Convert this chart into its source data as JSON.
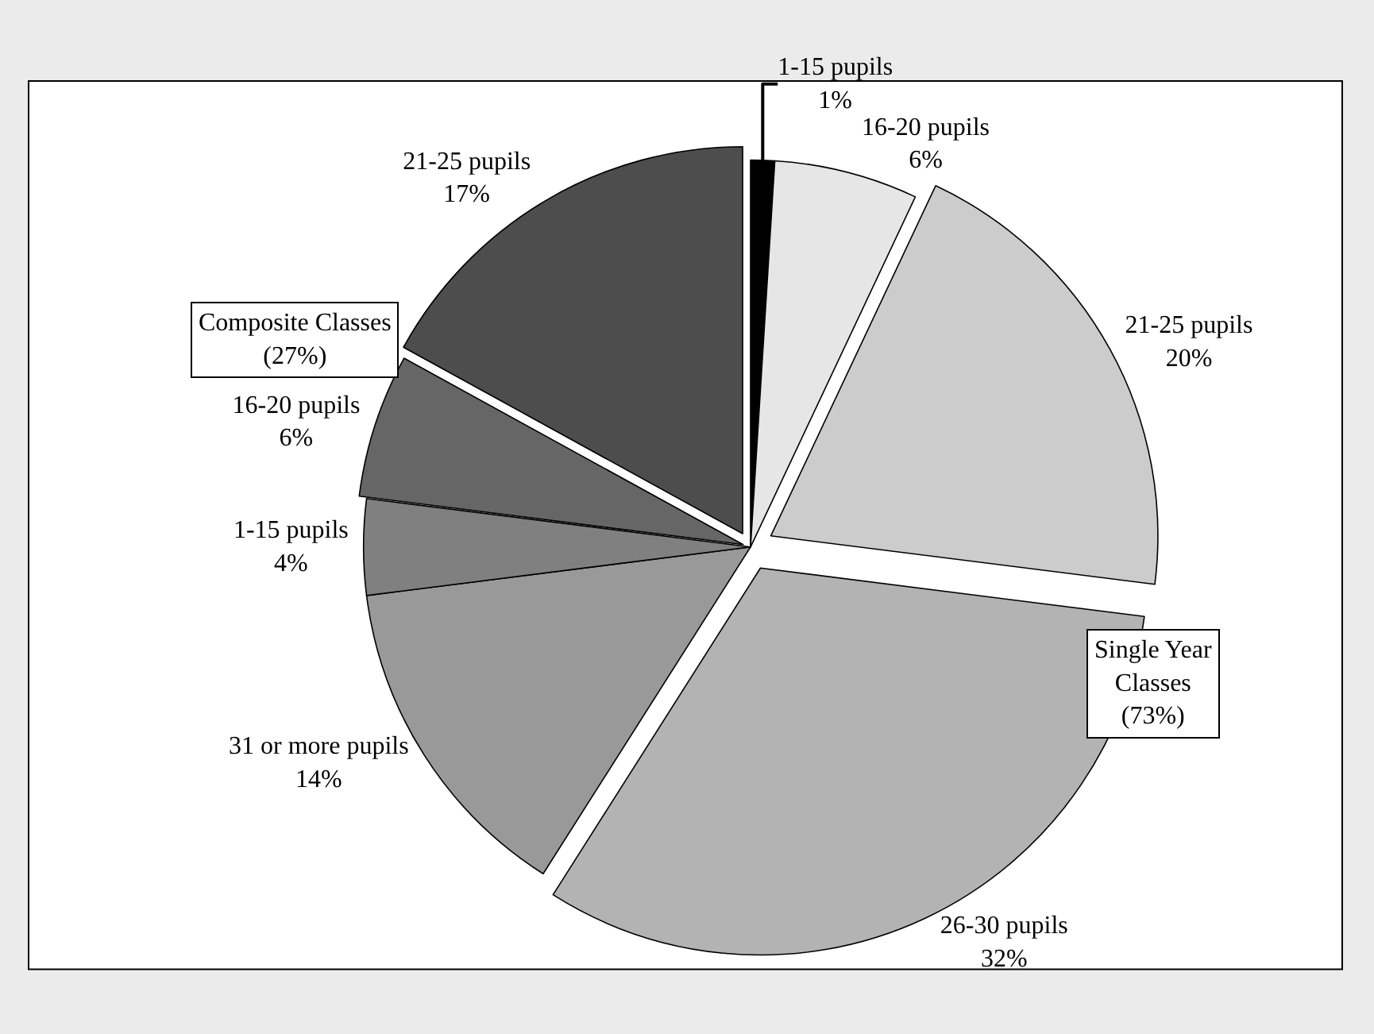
{
  "chart_data": {
    "type": "pie",
    "categories": [
      "1-15 pupils",
      "16-20 pupils",
      "21-25 pupils",
      "26-30 pupils",
      "31 or more pupils",
      "1-15 pupils",
      "16-20 pupils",
      "21-25 pupils"
    ],
    "values": [
      1,
      6,
      20,
      32,
      14,
      4,
      6,
      17
    ],
    "value_labels": [
      "1%",
      "6%",
      "20%",
      "32%",
      "14%",
      "4%",
      "6%",
      "17%"
    ],
    "colors": [
      "#000000",
      "#e6e6e6",
      "#cccccc",
      "#b3b3b3",
      "#999999",
      "#808080",
      "#666666",
      "#4d4d4d"
    ],
    "annotations": [
      "Composite Classes\n(27%)",
      "Single Year\nClasses\n(73%)"
    ],
    "legend": false
  }
}
